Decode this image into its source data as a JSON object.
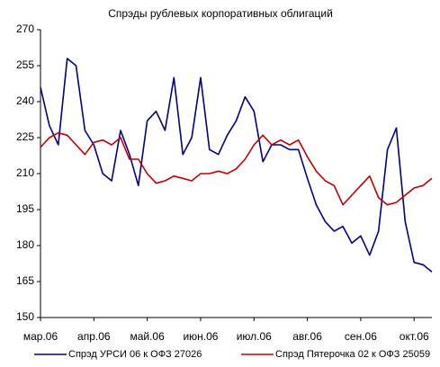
{
  "chart_data": {
    "type": "line",
    "title": "Спрэды рублевых корпоративных облигаций",
    "categories": [
      "мар.06",
      null,
      null,
      null,
      null,
      null,
      "апр.06",
      null,
      null,
      null,
      null,
      null,
      "май.06",
      null,
      null,
      null,
      null,
      null,
      "июн.06",
      null,
      null,
      null,
      null,
      null,
      "июл.06",
      null,
      null,
      null,
      null,
      null,
      "авг.06",
      null,
      null,
      null,
      null,
      null,
      "сен.06",
      null,
      null,
      null,
      null,
      null,
      "окт.06",
      null,
      null
    ],
    "series": [
      {
        "name": "Спрэд УРСИ 06 к ОФЗ 27026",
        "color": "#000080",
        "values": [
          246,
          230,
          222,
          258,
          255,
          228,
          222,
          210,
          207,
          228,
          218,
          205,
          232,
          236,
          228,
          250,
          218,
          225,
          250,
          220,
          218,
          226,
          232,
          242,
          236,
          215,
          222,
          222,
          220,
          220,
          208,
          197,
          190,
          186,
          188,
          181,
          184,
          176,
          186,
          220,
          229,
          190,
          173,
          172,
          169
        ]
      },
      {
        "name": "Спрэд Пятерочка 02 к ОФЗ 25059",
        "color": "#c00000",
        "values": [
          221,
          225,
          227,
          226,
          222,
          218,
          223,
          224,
          222,
          225,
          216,
          216,
          210,
          206,
          207,
          209,
          208,
          207,
          210,
          210,
          211,
          210,
          212,
          216,
          222,
          226,
          222,
          224,
          222,
          224,
          217,
          211,
          207,
          205,
          197,
          201,
          205,
          209,
          200,
          197,
          198,
          201,
          204,
          205,
          208
        ]
      }
    ],
    "ylim": [
      150,
      270
    ],
    "yticks": [
      150,
      165,
      180,
      195,
      210,
      225,
      240,
      255,
      270
    ],
    "grid": false
  }
}
